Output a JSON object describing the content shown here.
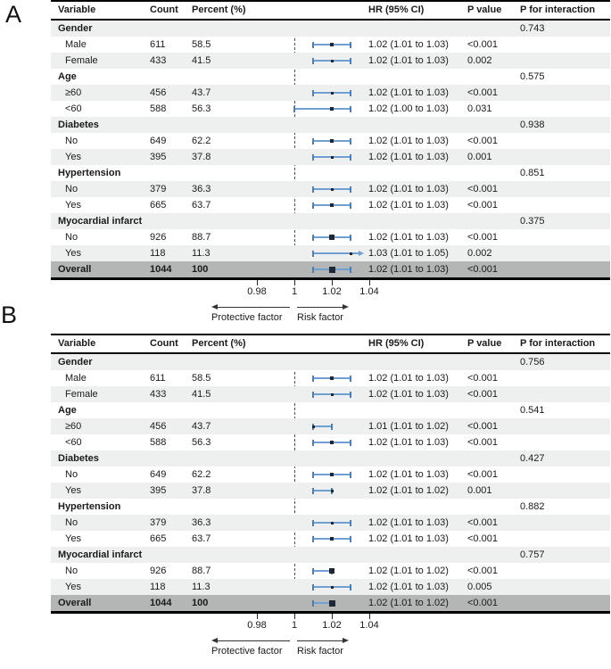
{
  "figure": {
    "panel_a_label": "A",
    "panel_b_label": "B"
  },
  "columns": {
    "variable": "Variable",
    "count": "Count",
    "percent": "Percent (%)",
    "hr": "HR (95% CI)",
    "p": "P value",
    "p_interaction": "P for interaction"
  },
  "axis": {
    "ref_value": 1,
    "tick_values": [
      0.98,
      1,
      1.02,
      1.04
    ],
    "tick_labels": [
      "0.98",
      "1",
      "1.02",
      "1.04"
    ],
    "left_label": "Protective factor",
    "right_label": "Risk factor"
  },
  "colors": {
    "ci_line": "#6f9fd3",
    "ci_cap": "#4d7fb5",
    "marker": "#1e2733",
    "stripe_row": "#eef0ef",
    "overall_row": "#b3b6b4",
    "border": "#000000",
    "dashed_line": "#4d4d4d"
  },
  "chart_data": [
    {
      "panel": "A",
      "type": "forest",
      "xlim": [
        0.975,
        1.038
      ],
      "ref_line": 1,
      "rows": [
        {
          "kind": "group",
          "label": "Gender",
          "p_interaction": "0.743"
        },
        {
          "kind": "item",
          "label": "Male",
          "count": "611",
          "percent": "58.5",
          "hr": 1.02,
          "lo": 1.01,
          "hi": 1.03,
          "hr_text": "1.02 (1.01 to 1.03)",
          "p": "<0.001"
        },
        {
          "kind": "item",
          "label": "Female",
          "count": "433",
          "percent": "41.5",
          "hr": 1.02,
          "lo": 1.01,
          "hi": 1.03,
          "hr_text": "1.02 (1.01 to 1.03)",
          "p": "0.002"
        },
        {
          "kind": "group",
          "label": "Age",
          "p_interaction": "0.575"
        },
        {
          "kind": "item",
          "label": "≥60",
          "count": "456",
          "percent": "43.7",
          "hr": 1.02,
          "lo": 1.01,
          "hi": 1.03,
          "hr_text": "1.02 (1.01 to 1.03)",
          "p": "<0.001"
        },
        {
          "kind": "item",
          "label": "<60",
          "count": "588",
          "percent": "56.3",
          "hr": 1.02,
          "lo": 1.0,
          "hi": 1.03,
          "hr_text": "1.02 (1.00 to 1.03)",
          "p": "0.031"
        },
        {
          "kind": "group",
          "label": "Diabetes",
          "p_interaction": "0.938"
        },
        {
          "kind": "item",
          "label": "No",
          "count": "649",
          "percent": "62.2",
          "hr": 1.02,
          "lo": 1.01,
          "hi": 1.03,
          "hr_text": "1.02 (1.01 to 1.03)",
          "p": "<0.001"
        },
        {
          "kind": "item",
          "label": "Yes",
          "count": "395",
          "percent": "37.8",
          "hr": 1.02,
          "lo": 1.01,
          "hi": 1.03,
          "hr_text": "1.02 (1.01 to 1.03)",
          "p": "0.001"
        },
        {
          "kind": "group",
          "label": "Hypertension",
          "p_interaction": "0.851"
        },
        {
          "kind": "item",
          "label": "No",
          "count": "379",
          "percent": "36.3",
          "hr": 1.02,
          "lo": 1.01,
          "hi": 1.03,
          "hr_text": "1.02 (1.01 to 1.03)",
          "p": "<0.001"
        },
        {
          "kind": "item",
          "label": "Yes",
          "count": "665",
          "percent": "63.7",
          "hr": 1.02,
          "lo": 1.01,
          "hi": 1.03,
          "hr_text": "1.02 (1.01 to 1.03)",
          "p": "<0.001"
        },
        {
          "kind": "group",
          "label": "Myocardial infarct",
          "p_interaction": "0.375"
        },
        {
          "kind": "item",
          "label": "No",
          "count": "926",
          "percent": "88.7",
          "hr": 1.02,
          "lo": 1.01,
          "hi": 1.03,
          "hr_text": "1.02 (1.01 to 1.03)",
          "p": "<0.001"
        },
        {
          "kind": "item",
          "label": "Yes",
          "count": "118",
          "percent": "11.3",
          "hr": 1.03,
          "lo": 1.01,
          "hi": 1.05,
          "hr_text": "1.03 (1.01 to 1.05)",
          "p": "0.002",
          "arrow": true
        },
        {
          "kind": "overall",
          "label": "Overall",
          "count": "1044",
          "percent": "100",
          "hr": 1.02,
          "lo": 1.01,
          "hi": 1.03,
          "hr_text": "1.02 (1.01 to 1.03)",
          "p": "<0.001"
        }
      ]
    },
    {
      "panel": "B",
      "type": "forest",
      "xlim": [
        0.975,
        1.038
      ],
      "ref_line": 1,
      "rows": [
        {
          "kind": "group",
          "label": "Gender",
          "p_interaction": "0.756"
        },
        {
          "kind": "item",
          "label": "Male",
          "count": "611",
          "percent": "58.5",
          "hr": 1.02,
          "lo": 1.01,
          "hi": 1.03,
          "hr_text": "1.02 (1.01 to 1.03)",
          "p": "<0.001"
        },
        {
          "kind": "item",
          "label": "Female",
          "count": "433",
          "percent": "41.5",
          "hr": 1.02,
          "lo": 1.01,
          "hi": 1.03,
          "hr_text": "1.02 (1.01 to 1.03)",
          "p": "<0.001"
        },
        {
          "kind": "group",
          "label": "Age",
          "p_interaction": "0.541"
        },
        {
          "kind": "item",
          "label": "≥60",
          "count": "456",
          "percent": "43.7",
          "hr": 1.01,
          "lo": 1.01,
          "hi": 1.02,
          "hr_text": "1.01 (1.01 to 1.02)",
          "p": "<0.001"
        },
        {
          "kind": "item",
          "label": "<60",
          "count": "588",
          "percent": "56.3",
          "hr": 1.02,
          "lo": 1.01,
          "hi": 1.03,
          "hr_text": "1.02 (1.01 to 1.03)",
          "p": "<0.001"
        },
        {
          "kind": "group",
          "label": "Diabetes",
          "p_interaction": "0.427"
        },
        {
          "kind": "item",
          "label": "No",
          "count": "649",
          "percent": "62.2",
          "hr": 1.02,
          "lo": 1.01,
          "hi": 1.03,
          "hr_text": "1.02 (1.01 to 1.03)",
          "p": "<0.001"
        },
        {
          "kind": "item",
          "label": "Yes",
          "count": "395",
          "percent": "37.8",
          "hr": 1.02,
          "lo": 1.01,
          "hi": 1.02,
          "hr_text": "1.02 (1.01 to 1.02)",
          "p": "0.001"
        },
        {
          "kind": "group",
          "label": "Hypertension",
          "p_interaction": "0.882"
        },
        {
          "kind": "item",
          "label": "No",
          "count": "379",
          "percent": "36.3",
          "hr": 1.02,
          "lo": 1.01,
          "hi": 1.03,
          "hr_text": "1.02 (1.01 to 1.03)",
          "p": "<0.001"
        },
        {
          "kind": "item",
          "label": "Yes",
          "count": "665",
          "percent": "63.7",
          "hr": 1.02,
          "lo": 1.01,
          "hi": 1.03,
          "hr_text": "1.02 (1.01 to 1.03)",
          "p": "<0.001"
        },
        {
          "kind": "group",
          "label": "Myocardial infarct",
          "p_interaction": "0.757"
        },
        {
          "kind": "item",
          "label": "No",
          "count": "926",
          "percent": "88.7",
          "hr": 1.02,
          "lo": 1.01,
          "hi": 1.02,
          "hr_text": "1.02 (1.01 to 1.02)",
          "p": "<0.001"
        },
        {
          "kind": "item",
          "label": "Yes",
          "count": "118",
          "percent": "11.3",
          "hr": 1.02,
          "lo": 1.01,
          "hi": 1.03,
          "hr_text": "1.02 (1.01 to 1.03)",
          "p": "0.005"
        },
        {
          "kind": "overall",
          "label": "Overall",
          "count": "1044",
          "percent": "100",
          "hr": 1.02,
          "lo": 1.01,
          "hi": 1.02,
          "hr_text": "1.02 (1.01 to 1.02)",
          "p": "<0.001"
        }
      ]
    }
  ]
}
